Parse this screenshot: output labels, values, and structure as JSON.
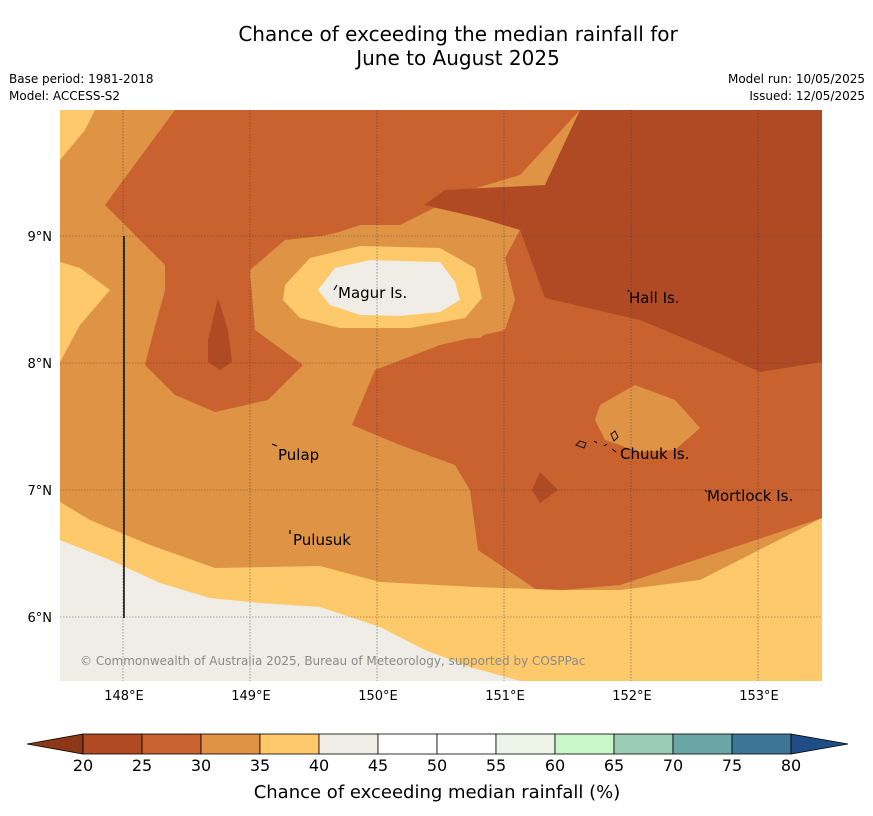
{
  "title_line1": "Chance of exceeding the median rainfall for",
  "title_line2": "June to August 2025",
  "base_period": "Base period: 1981-2018",
  "model": "Model: ACCESS-S2",
  "model_run": "Model run: 10/05/2025",
  "issued": "Issued: 12/05/2025",
  "lat_labels": [
    "9°N",
    "8°N",
    "7°N",
    "6°N"
  ],
  "lon_labels": [
    "148°E",
    "149°E",
    "150°E",
    "151°E",
    "152°E",
    "153°E"
  ],
  "places": {
    "magur": "Magur Is.",
    "hall": "Hall Is.",
    "pulap": "Pulap",
    "chuuk": "Chuuk Is.",
    "mortlock": "Mortlock Is.",
    "pulusuk": "Pulusuk"
  },
  "credit": "© Commonwealth of Australia 2025, Bureau of Meteorology, supported by COSPPac",
  "colorbar": {
    "title": "Chance of exceeding median rainfall (%)",
    "ticks": [
      "20",
      "25",
      "30",
      "35",
      "40",
      "45",
      "50",
      "55",
      "60",
      "65",
      "70",
      "75",
      "80"
    ],
    "colors": [
      "#b04a24",
      "#c9622f",
      "#df9344",
      "#fdc96a",
      "#f0ece6",
      "#ffffff",
      "#ffffff",
      "#edf5e9",
      "#c9f7c9",
      "#9acdb4",
      "#6aa6a6",
      "#3d7597"
    ],
    "under_color": "#8b3718",
    "over_color": "#1f4e86"
  },
  "palette": {
    "p20": "#b04a24",
    "p25": "#c9622f",
    "p30": "#df9344",
    "p35": "#fdc96a",
    "p40": "#f0ece6"
  }
}
